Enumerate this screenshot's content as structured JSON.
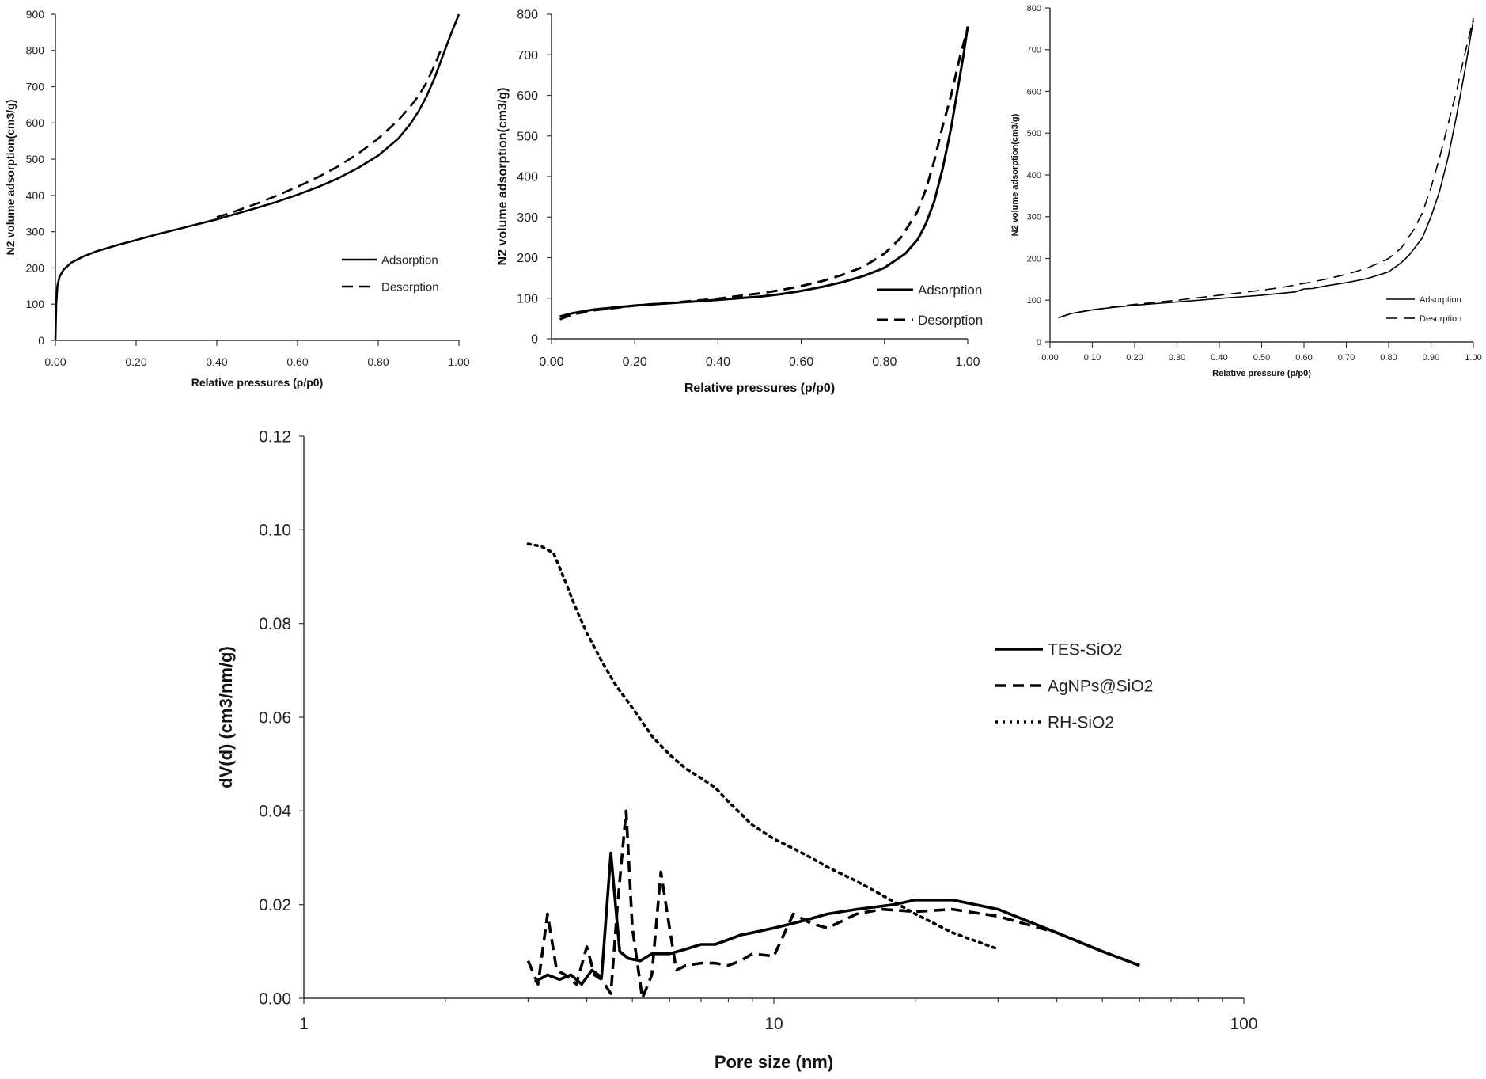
{
  "chart_data": [
    {
      "type": "line",
      "xlabel": "Relative pressures (p/p0)",
      "ylabel": "N2 volume adsorption(cm3/g)",
      "xlim": [
        0,
        1
      ],
      "ylim": [
        0,
        900
      ],
      "xticks": [
        "0.00",
        "0.20",
        "0.40",
        "0.60",
        "0.80",
        "1.00"
      ],
      "yticks": [
        "0",
        "100",
        "200",
        "300",
        "400",
        "500",
        "600",
        "700",
        "800",
        "900"
      ],
      "legend_position": "lower-right",
      "series": [
        {
          "name": "Adsorption",
          "style": "solid",
          "x": [
            0.0,
            0.002,
            0.005,
            0.01,
            0.02,
            0.04,
            0.07,
            0.1,
            0.15,
            0.2,
            0.25,
            0.3,
            0.35,
            0.4,
            0.45,
            0.5,
            0.55,
            0.6,
            0.65,
            0.7,
            0.75,
            0.8,
            0.85,
            0.88,
            0.9,
            0.92,
            0.94,
            0.96,
            0.98,
            1.0
          ],
          "y": [
            0,
            100,
            150,
            175,
            195,
            215,
            232,
            245,
            262,
            277,
            292,
            306,
            320,
            334,
            350,
            366,
            383,
            402,
            423,
            447,
            476,
            510,
            557,
            598,
            632,
            674,
            725,
            785,
            845,
            900
          ]
        },
        {
          "name": "Desorption",
          "style": "dashed",
          "x": [
            0.4,
            0.45,
            0.5,
            0.55,
            0.6,
            0.65,
            0.7,
            0.75,
            0.8,
            0.85,
            0.88,
            0.9,
            0.92,
            0.94,
            0.96
          ],
          "y": [
            340,
            358,
            378,
            400,
            424,
            450,
            480,
            515,
            557,
            608,
            646,
            675,
            712,
            760,
            815
          ]
        }
      ]
    },
    {
      "type": "line",
      "xlabel": "Relative pressures (p/p0)",
      "ylabel": "N2 volume adsorption(cm3/g)",
      "xlim": [
        0,
        1
      ],
      "ylim": [
        0,
        800
      ],
      "xticks": [
        "0.00",
        "0.20",
        "0.40",
        "0.60",
        "0.80",
        "1.00"
      ],
      "yticks": [
        "0",
        "100",
        "200",
        "300",
        "400",
        "500",
        "600",
        "700",
        "800"
      ],
      "legend_position": "lower-right",
      "series": [
        {
          "name": "Adsorption",
          "style": "solid",
          "x": [
            0.02,
            0.05,
            0.1,
            0.15,
            0.2,
            0.3,
            0.4,
            0.5,
            0.55,
            0.6,
            0.65,
            0.7,
            0.75,
            0.8,
            0.85,
            0.88,
            0.9,
            0.92,
            0.94,
            0.96,
            0.98,
            0.99,
            1.0
          ],
          "y": [
            55,
            63,
            72,
            77,
            82,
            89,
            96,
            104,
            110,
            118,
            128,
            140,
            155,
            175,
            210,
            245,
            285,
            340,
            420,
            520,
            640,
            700,
            770
          ]
        },
        {
          "name": "Desorption",
          "style": "dashed",
          "x": [
            0.02,
            0.05,
            0.1,
            0.15,
            0.2,
            0.3,
            0.4,
            0.5,
            0.55,
            0.6,
            0.65,
            0.7,
            0.75,
            0.8,
            0.84,
            0.88,
            0.9,
            0.92,
            0.94,
            0.96,
            0.98,
            1.0
          ],
          "y": [
            48,
            60,
            70,
            76,
            82,
            90,
            99,
            112,
            120,
            130,
            142,
            158,
            178,
            210,
            250,
            315,
            370,
            440,
            525,
            600,
            690,
            765
          ]
        }
      ]
    },
    {
      "type": "line",
      "xlabel": "Relative pressure (p/p0)",
      "ylabel": "N2 volume adsorption(cm3/g)",
      "xlim": [
        0,
        1
      ],
      "ylim": [
        0,
        800
      ],
      "xticks": [
        "0.00",
        "0.10",
        "0.20",
        "0.30",
        "0.40",
        "0.50",
        "0.60",
        "0.70",
        "0.80",
        "0.90",
        "1.00"
      ],
      "yticks": [
        "0",
        "100",
        "200",
        "300",
        "400",
        "500",
        "600",
        "700",
        "800"
      ],
      "legend_position": "lower-right",
      "series": [
        {
          "name": "Adsorption",
          "style": "solid",
          "x": [
            0.02,
            0.05,
            0.1,
            0.15,
            0.2,
            0.25,
            0.3,
            0.35,
            0.4,
            0.45,
            0.5,
            0.55,
            0.58,
            0.6,
            0.62,
            0.65,
            0.7,
            0.75,
            0.8,
            0.83,
            0.85,
            0.88,
            0.9,
            0.92,
            0.94,
            0.96,
            0.98,
            1.0
          ],
          "y": [
            58,
            68,
            77,
            83,
            88,
            92,
            96,
            100,
            104,
            108,
            112,
            117,
            120,
            127,
            128,
            134,
            142,
            152,
            168,
            190,
            210,
            250,
            300,
            360,
            440,
            540,
            650,
            770
          ]
        },
        {
          "name": "Desorption",
          "style": "dashed",
          "x": [
            0.02,
            0.05,
            0.1,
            0.15,
            0.2,
            0.25,
            0.3,
            0.35,
            0.4,
            0.45,
            0.5,
            0.55,
            0.6,
            0.65,
            0.7,
            0.75,
            0.8,
            0.83,
            0.86,
            0.88,
            0.9,
            0.92,
            0.94,
            0.96,
            0.98,
            1.0
          ],
          "y": [
            58,
            68,
            77,
            84,
            90,
            95,
            100,
            106,
            112,
            118,
            124,
            131,
            140,
            150,
            162,
            177,
            200,
            225,
            270,
            310,
            370,
            440,
            520,
            600,
            690,
            775
          ]
        }
      ]
    },
    {
      "type": "line",
      "xscale": "log",
      "xlabel": "Pore size (nm)",
      "ylabel": "dV(d) (cm3/nm/g)",
      "xlim": [
        1,
        100
      ],
      "ylim": [
        0,
        0.12
      ],
      "xticks": [
        "1",
        "10",
        "100"
      ],
      "yticks": [
        "0.00",
        "0.02",
        "0.04",
        "0.06",
        "0.08",
        "0.10",
        "0.12"
      ],
      "legend_position": "right",
      "series": [
        {
          "name": "TES-SiO2",
          "style": "solid",
          "x": [
            3.1,
            3.3,
            3.5,
            3.7,
            3.9,
            4.1,
            4.3,
            4.5,
            4.7,
            4.9,
            5.2,
            5.5,
            6.0,
            6.5,
            7.0,
            7.5,
            8.0,
            8.5,
            9.0,
            10,
            11,
            12,
            13,
            15,
            18,
            20,
            24,
            30,
            40,
            50,
            60
          ],
          "y": [
            0.0035,
            0.005,
            0.004,
            0.005,
            0.003,
            0.006,
            0.0045,
            0.031,
            0.01,
            0.0085,
            0.008,
            0.0095,
            0.0095,
            0.0105,
            0.0115,
            0.0115,
            0.0125,
            0.0135,
            0.014,
            0.015,
            0.016,
            0.017,
            0.018,
            0.019,
            0.02,
            0.021,
            0.021,
            0.019,
            0.014,
            0.01,
            0.007
          ]
        },
        {
          "name": "AgNPs@SiO2",
          "style": "dashed",
          "x": [
            3.0,
            3.15,
            3.3,
            3.45,
            3.6,
            3.8,
            4.0,
            4.15,
            4.3,
            4.5,
            4.65,
            4.85,
            5.0,
            5.25,
            5.5,
            5.75,
            6.0,
            6.2,
            6.5,
            7.0,
            7.5,
            8.0,
            8.5,
            9.0,
            10,
            11,
            12,
            13,
            15,
            17,
            20,
            24,
            30,
            40,
            50,
            60
          ],
          "y": [
            0.008,
            0.003,
            0.018,
            0.006,
            0.005,
            0.003,
            0.011,
            0.005,
            0.004,
            0.001,
            0.02,
            0.04,
            0.015,
            0.0,
            0.005,
            0.027,
            0.015,
            0.006,
            0.007,
            0.0075,
            0.0075,
            0.007,
            0.008,
            0.0095,
            0.009,
            0.018,
            0.016,
            0.015,
            0.018,
            0.019,
            0.0185,
            0.019,
            0.0175,
            0.014,
            0.01,
            0.007
          ]
        },
        {
          "name": "RH-SiO2",
          "style": "dotted",
          "x": [
            3.0,
            3.2,
            3.4,
            3.6,
            3.8,
            4.0,
            4.3,
            4.6,
            5.0,
            5.5,
            6.0,
            6.5,
            7.0,
            7.5,
            8.0,
            9.0,
            10,
            11,
            12,
            13,
            15,
            17,
            20,
            24,
            30
          ],
          "y": [
            0.097,
            0.0965,
            0.095,
            0.089,
            0.083,
            0.078,
            0.072,
            0.067,
            0.062,
            0.056,
            0.052,
            0.049,
            0.047,
            0.045,
            0.042,
            0.037,
            0.034,
            0.032,
            0.03,
            0.028,
            0.025,
            0.022,
            0.018,
            0.014,
            0.0105
          ]
        }
      ]
    }
  ]
}
